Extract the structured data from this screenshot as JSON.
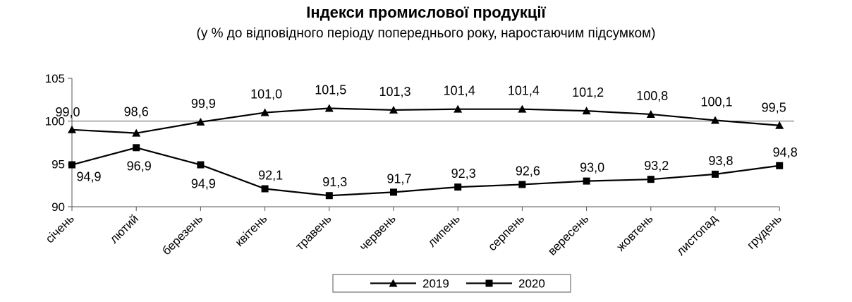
{
  "chart_data": {
    "type": "line",
    "title": "Індекси промислової продукції",
    "subtitle": "(у % до відповідного періоду попереднього року, наростаючим підсумком)",
    "categories": [
      "січень",
      "лютий",
      "березень",
      "квітень",
      "травень",
      "червень",
      "липень",
      "серпень",
      "вересень",
      "жовтень",
      "листопад",
      "грудень"
    ],
    "series": [
      {
        "name": "2019",
        "marker": "triangle",
        "values": [
          99.0,
          98.6,
          99.9,
          101.0,
          101.5,
          101.3,
          101.4,
          101.4,
          101.2,
          100.8,
          100.1,
          99.5
        ],
        "labels": [
          "99,0",
          "98,6",
          "99,9",
          "101,0",
          "101,5",
          "101,3",
          "101,4",
          "101,4",
          "101,2",
          "100,8",
          "100,1",
          "99,5"
        ]
      },
      {
        "name": "2020",
        "marker": "square",
        "values": [
          94.9,
          96.9,
          94.9,
          92.1,
          91.3,
          91.7,
          92.3,
          92.6,
          93.0,
          93.2,
          93.8,
          94.8
        ],
        "labels": [
          "94,9",
          "96,9",
          "94,9",
          "92,1",
          "91,3",
          "91,7",
          "92,3",
          "92,6",
          "93,0",
          "93,2",
          "93,8",
          "94,8"
        ]
      }
    ],
    "ylim": [
      90,
      105
    ],
    "yticks": [
      90,
      95,
      100,
      105
    ],
    "reference_line": 100,
    "xlabel": "",
    "ylabel": "",
    "grid": false,
    "legend_position": "bottom",
    "line_color": "#000000"
  }
}
